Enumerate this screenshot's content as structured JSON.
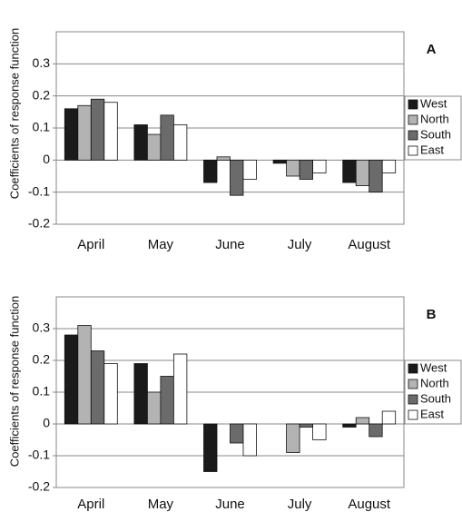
{
  "chart_data": [
    {
      "type": "bar",
      "label": "A",
      "y_label": "Coefficients of response function",
      "categories": [
        "April",
        "May",
        "June",
        "July",
        "August"
      ],
      "series": [
        {
          "name": "West",
          "color": "#1a1a1a",
          "values": [
            0.16,
            0.11,
            -0.07,
            -0.01,
            -0.07
          ]
        },
        {
          "name": "North",
          "color": "#b3b3b3",
          "values": [
            0.17,
            0.08,
            0.01,
            -0.05,
            -0.08
          ]
        },
        {
          "name": "South",
          "color": "#6b6b6b",
          "values": [
            0.19,
            0.14,
            -0.11,
            -0.06,
            -0.1
          ]
        },
        {
          "name": "East",
          "color": "#ffffff",
          "values": [
            0.18,
            0.11,
            -0.06,
            -0.04,
            -0.04
          ]
        }
      ],
      "ylim": [
        -0.2,
        0.4
      ],
      "yticks": [
        -0.2,
        -0.1,
        0,
        0.1,
        0.2,
        0.3
      ],
      "grid": true,
      "legend": "right"
    },
    {
      "type": "bar",
      "label": "B",
      "y_label": "Coefficients of response function",
      "categories": [
        "April",
        "May",
        "June",
        "July",
        "August"
      ],
      "series": [
        {
          "name": "West",
          "color": "#1a1a1a",
          "values": [
            0.28,
            0.19,
            -0.15,
            0,
            -0.01
          ]
        },
        {
          "name": "North",
          "color": "#b3b3b3",
          "values": [
            0.31,
            0.1,
            0,
            -0.09,
            0.02
          ]
        },
        {
          "name": "South",
          "color": "#6b6b6b",
          "values": [
            0.23,
            0.15,
            -0.06,
            -0.01,
            -0.04
          ]
        },
        {
          "name": "East",
          "color": "#ffffff",
          "values": [
            0.19,
            0.22,
            -0.1,
            -0.05,
            0.04
          ]
        }
      ],
      "ylim": [
        -0.2,
        0.4
      ],
      "yticks": [
        -0.2,
        -0.1,
        0,
        0.1,
        0.2,
        0.3
      ],
      "grid": true,
      "legend": "right"
    }
  ]
}
